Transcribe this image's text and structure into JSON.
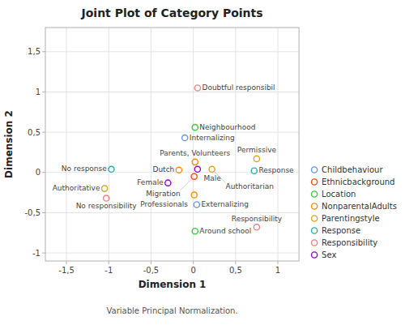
{
  "chart_data": {
    "type": "scatter",
    "title": "Joint Plot of Category Points",
    "x_label": "Dimension 1",
    "y_label": "Dimension 2",
    "footnote": "Variable Principal Normalization.",
    "xlim": [
      -1.75,
      1.25
    ],
    "ylim": [
      -1.1,
      1.8
    ],
    "xticks": [
      {
        "value": -1.5,
        "label": "-1,5"
      },
      -1,
      {
        "value": -0.5,
        "label": "-0,5"
      },
      0,
      {
        "value": 0.5,
        "label": "0,5"
      },
      1
    ],
    "yticks": [
      -1,
      {
        "value": -0.5,
        "label": "-0,5"
      },
      0,
      {
        "value": 0.5,
        "label": "0,5"
      },
      1,
      {
        "value": 1.5,
        "label": "1,5"
      }
    ],
    "grid": true,
    "marker": "circle",
    "labels": [
      "Doubtful responsibil",
      "Neighbourhood",
      "Internalizing",
      "Parents, Volunteers",
      "Permissive",
      "Male",
      "Authoritarian",
      "Dutch",
      "Response",
      "Migration",
      "No response",
      "Authoritative",
      "Female",
      "Professionals",
      "Externalizing",
      "No responsibility",
      "Around school",
      "Responsibility"
    ],
    "x": [
      0.05,
      0.02,
      -0.1,
      0.02,
      0.75,
      0.05,
      0.22,
      -0.17,
      0.72,
      0.01,
      -0.97,
      -1.05,
      -0.3,
      0.01,
      0.04,
      -1.03,
      0.02,
      0.75
    ],
    "values": [
      1.05,
      0.56,
      0.43,
      0.13,
      0.17,
      0.04,
      0.04,
      0.03,
      0.02,
      -0.05,
      0.04,
      -0.2,
      -0.13,
      -0.28,
      -0.4,
      -0.32,
      -0.73,
      -0.68
    ],
    "colors": [
      "#F08080",
      "#32CD32",
      "#6495ED",
      "#FF8C00",
      "#DAA520",
      "#9400D3",
      "#DAA520",
      "#FF8C00",
      "#20B2AA",
      "#FF4500",
      "#20B2AA",
      "#DAA520",
      "#9400D3",
      "#FF8C00",
      "#6495ED",
      "#F08080",
      "#32CD32",
      "#F08080"
    ],
    "legend": "lower right",
    "legend_items": [
      {
        "name": "Childbehaviour",
        "color": "#6495ED"
      },
      {
        "name": "Ethnicbackground",
        "color": "#FF4500"
      },
      {
        "name": "Location",
        "color": "#32CD32"
      },
      {
        "name": "NonparentalAdults",
        "color": "#FF8C00"
      },
      {
        "name": "Parentingstyle",
        "color": "#DAA520"
      },
      {
        "name": "Response",
        "color": "#20B2AA"
      },
      {
        "name": "Responsibility",
        "color": "#F08080"
      },
      {
        "name": "Sex",
        "color": "#9400D3"
      }
    ]
  }
}
